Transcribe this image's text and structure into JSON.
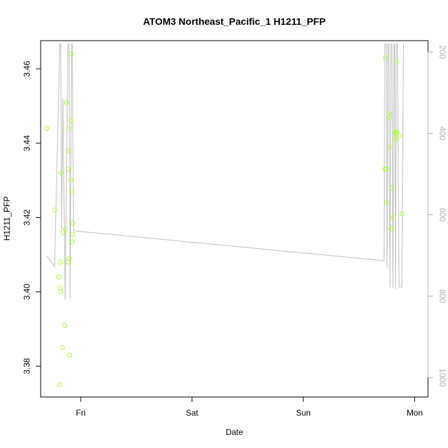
{
  "chart_data": {
    "type": "scatter",
    "title": "ATOM3 Northeast_Pacific_1 H1211_PFP",
    "xlabel": "Date",
    "ylabel": "H1211_PFP",
    "x_ticks": [
      "Fri",
      "Sat",
      "Sun",
      "Mon"
    ],
    "x_tick_values": [
      1.0,
      2.0,
      3.0,
      4.0
    ],
    "xlim": [
      0.64,
      4.12
    ],
    "ylim": [
      3.3717,
      3.4676
    ],
    "y_ticks": [
      3.38,
      3.4,
      3.42,
      3.44,
      3.46
    ],
    "y_tick_labels": [
      "3.38",
      "3.40",
      "3.42",
      "3.44",
      "3.46"
    ],
    "y2lim": [
      1048,
      172
    ],
    "y2_ticks": [
      200,
      400,
      600,
      800,
      1000
    ],
    "y2_tick_labels": [
      "200",
      "400",
      "600",
      "800",
      "1000"
    ],
    "grid": false,
    "colors": {
      "points": "#adff2f",
      "line": "#bebebe",
      "axis": "#000000",
      "axis_right": "#b0b0b0"
    },
    "series": [
      {
        "type": "scatter",
        "x": [
          0.695,
          0.765,
          0.805,
          0.81,
          0.815,
          0.817,
          0.82,
          0.822,
          0.835,
          0.845,
          0.857,
          0.862,
          0.872,
          0.885,
          0.89,
          0.892,
          0.895,
          0.897,
          0.9,
          0.91,
          0.912,
          0.915,
          0.922,
          0.923,
          0.927,
          0.93,
          3.732,
          3.738,
          3.742,
          3.748,
          3.772,
          3.775,
          3.78,
          3.787,
          3.795,
          3.81,
          3.822,
          3.825,
          3.827,
          3.83,
          3.835,
          3.83,
          3.862,
          3.887
        ],
        "y": [
          3.444,
          3.422,
          3.404,
          3.375,
          3.401,
          3.408,
          3.4,
          3.432,
          3.385,
          3.416,
          3.391,
          3.417,
          3.451,
          3.408,
          3.433,
          3.444,
          3.409,
          3.438,
          3.383,
          3.43,
          3.446,
          3.464,
          3.427,
          3.4135,
          3.4155,
          3.4185,
          3.433,
          3.463,
          3.433,
          3.424,
          3.447,
          3.448,
          3.439,
          3.417,
          3.428,
          3.42,
          3.443,
          3.443,
          3.441,
          3.462,
          3.443,
          3.4425,
          3.442,
          3.421
        ]
      },
      {
        "type": "line",
        "axis": "right",
        "x": [
          0.695,
          0.765,
          0.812,
          0.82,
          0.828,
          0.84,
          0.86,
          0.885,
          0.895,
          0.905,
          0.918,
          0.925,
          0.935,
          0.945,
          0.955,
          3.725,
          3.732,
          3.745,
          3.752,
          3.76,
          3.768,
          3.778,
          3.787,
          3.797,
          3.805,
          3.815,
          3.82,
          3.828,
          3.835,
          3.845,
          3.86,
          3.87,
          3.885,
          3.89,
          3.9
        ],
        "y": [
          701,
          728,
          180,
          180,
          635,
          315,
          808,
          180,
          180,
          805,
          180,
          180,
          640,
          638,
          640,
          713,
          180,
          180,
          730,
          180,
          180,
          778,
          180,
          180,
          780,
          180,
          180,
          783,
          180,
          180,
          777,
          777,
          777,
          522,
          180
        ]
      }
    ]
  }
}
